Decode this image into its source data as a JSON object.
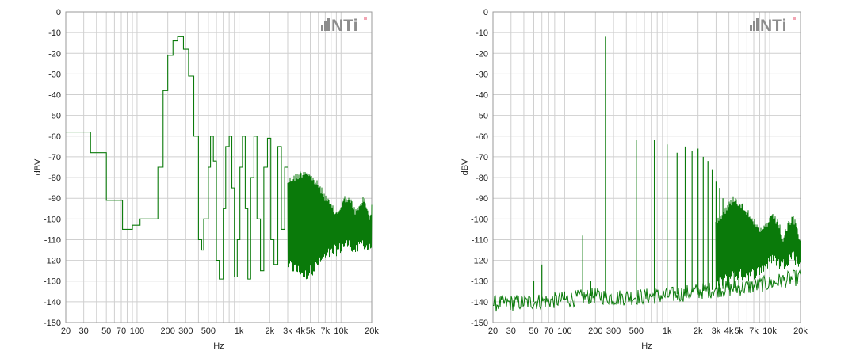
{
  "colors": {
    "trace": "#0a7a0a",
    "grid": "#cfcfcf",
    "frame": "#9a9a9a",
    "logo_gray": "#8c8c8c",
    "logo_accent": "#f2a5b3"
  },
  "chart_data": [
    {
      "type": "line",
      "title": "",
      "xlabel": "Hz",
      "ylabel": "dBV",
      "x_scale": "log",
      "xlim": [
        20,
        20000
      ],
      "ylim": [
        -150,
        0
      ],
      "x_ticks": [
        20,
        30,
        50,
        70,
        100,
        200,
        300,
        500,
        1000,
        2000,
        3000,
        4000,
        5000,
        7000,
        10000,
        20000
      ],
      "x_tick_labels": [
        "20",
        "30",
        "50",
        "70",
        "100",
        "200",
        "300",
        "500",
        "1k",
        "2k",
        "3k",
        "4k",
        "5k",
        "7k",
        "10k",
        "20k"
      ],
      "y_ticks": [
        0,
        -10,
        -20,
        -30,
        -40,
        -50,
        -60,
        -70,
        -80,
        -90,
        -100,
        -110,
        -120,
        -130,
        -140,
        -150
      ],
      "y_tick_labels": [
        "0",
        "-10",
        "-20",
        "-30",
        "-40",
        "-50",
        "-60",
        "-70",
        "-80",
        "-90",
        "-100",
        "-110",
        "-120",
        "-130",
        "-140",
        "-150"
      ],
      "grid": true,
      "logo": "NTi",
      "series": [
        {
          "style": "step",
          "x": [
            20,
            35,
            35,
            50,
            50,
            72,
            72,
            90,
            90,
            107,
            107,
            160,
            160,
            180,
            180,
            200,
            200,
            225,
            225,
            250,
            250,
            285,
            285,
            320,
            320,
            360,
            360,
            400,
            400,
            430,
            430,
            450,
            450,
            500,
            500,
            525,
            525,
            560,
            560,
            600,
            600,
            640,
            640,
            700,
            700,
            740,
            740,
            800,
            800,
            850,
            850,
            900,
            900,
            960,
            960,
            1020,
            1020,
            1080,
            1080,
            1150,
            1150,
            1220,
            1220,
            1300,
            1300,
            1400,
            1400,
            1500,
            1500,
            1620,
            1620,
            1750,
            1750,
            1900,
            1900,
            2050,
            2050,
            2200,
            2200,
            2400,
            2400,
            2600,
            2600,
            2800,
            2800,
            3000
          ],
          "y": [
            -58,
            -58,
            -68,
            -68,
            -91,
            -91,
            -105,
            -105,
            -103,
            -103,
            -100,
            -100,
            -75,
            -75,
            -38,
            -38,
            -21,
            -21,
            -14,
            -14,
            -12,
            -12,
            -18,
            -18,
            -31,
            -31,
            -60,
            -60,
            -110,
            -110,
            -115,
            -115,
            -100,
            -100,
            -75,
            -75,
            -60,
            -60,
            -72,
            -72,
            -120,
            -120,
            -129,
            -129,
            -95,
            -95,
            -65,
            -65,
            -60,
            -60,
            -85,
            -85,
            -128,
            -128,
            -110,
            -110,
            -75,
            -75,
            -60,
            -60,
            -95,
            -95,
            -129,
            -129,
            -80,
            -80,
            -60,
            -60,
            -100,
            -100,
            -125,
            -125,
            -75,
            -75,
            -61,
            -61,
            -110,
            -110,
            -122,
            -122,
            -65,
            -65,
            -105,
            -105,
            -75,
            -75
          ]
        },
        {
          "style": "dense",
          "envelope": [
            [
              3000,
              -80,
              -125
            ],
            [
              4500,
              -75,
              -130
            ],
            [
              6000,
              -82,
              -125
            ],
            [
              7500,
              -90,
              -120
            ],
            [
              9000,
              -96,
              -118
            ],
            [
              10000,
              -92,
              -117
            ],
            [
              11000,
              -88,
              -115
            ],
            [
              12500,
              -90,
              -116
            ],
            [
              14000,
              -95,
              -118
            ],
            [
              15500,
              -92,
              -116
            ],
            [
              16500,
              -88,
              -114
            ],
            [
              17500,
              -91,
              -116
            ],
            [
              19000,
              -97,
              -118
            ],
            [
              20000,
              -93,
              -115
            ]
          ]
        }
      ]
    },
    {
      "type": "line",
      "title": "",
      "xlabel": "Hz",
      "ylabel": "dBV",
      "x_scale": "log",
      "xlim": [
        20,
        20000
      ],
      "ylim": [
        -150,
        0
      ],
      "x_ticks": [
        20,
        30,
        50,
        70,
        100,
        200,
        300,
        500,
        1000,
        2000,
        3000,
        4000,
        5000,
        7000,
        10000,
        20000
      ],
      "x_tick_labels": [
        "20",
        "30",
        "50",
        "70",
        "100",
        "200",
        "300",
        "500",
        "1k",
        "2k",
        "3k",
        "4k",
        "5k",
        "7k",
        "10k",
        "20k"
      ],
      "y_ticks": [
        0,
        -10,
        -20,
        -30,
        -40,
        -50,
        -60,
        -70,
        -80,
        -90,
        -100,
        -110,
        -120,
        -130,
        -140,
        -150
      ],
      "y_tick_labels": [
        "0",
        "-10",
        "-20",
        "-30",
        "-40",
        "-50",
        "-60",
        "-70",
        "-80",
        "-90",
        "-100",
        "-110",
        "-120",
        "-130",
        "-140",
        "-150"
      ],
      "grid": true,
      "logo": "NTi",
      "series": [
        {
          "style": "spectrum",
          "noise_floor": [
            [
              20,
              -141
            ],
            [
              50,
              -140
            ],
            [
              100,
              -139
            ],
            [
              200,
              -137
            ],
            [
              300,
              -138
            ],
            [
              1000,
              -137
            ],
            [
              2000,
              -135
            ],
            [
              3000,
              -134
            ],
            [
              6000,
              -133
            ],
            [
              10000,
              -131
            ],
            [
              20000,
              -128
            ]
          ],
          "peaks": [
            [
              50,
              -130
            ],
            [
              60,
              -122
            ],
            [
              100,
              -135
            ],
            [
              150,
              -108
            ],
            [
              180,
              -130
            ],
            [
              250,
              -12
            ],
            [
              500,
              -62
            ],
            [
              750,
              -62
            ],
            [
              1000,
              -64
            ],
            [
              1250,
              -68
            ],
            [
              1500,
              -65
            ],
            [
              1750,
              -67
            ],
            [
              2000,
              -66
            ],
            [
              2250,
              -70
            ],
            [
              2500,
              -72
            ],
            [
              2750,
              -76
            ],
            [
              3000,
              -82
            ],
            [
              3250,
              -85
            ],
            [
              3500,
              -90
            ],
            [
              4000,
              -95
            ],
            [
              4500,
              -100
            ],
            [
              5000,
              -105
            ]
          ],
          "envelope": [
            [
              3000,
              -100,
              -135
            ],
            [
              4500,
              -88,
              -130
            ],
            [
              6500,
              -96,
              -130
            ],
            [
              8000,
              -105,
              -128
            ],
            [
              9500,
              -100,
              -125
            ],
            [
              11000,
              -97,
              -122
            ],
            [
              12500,
              -102,
              -125
            ],
            [
              13500,
              -108,
              -125
            ],
            [
              15500,
              -100,
              -122
            ],
            [
              17000,
              -98,
              -120
            ],
            [
              19000,
              -104,
              -126
            ],
            [
              20000,
              -110,
              -122
            ]
          ]
        }
      ]
    }
  ]
}
